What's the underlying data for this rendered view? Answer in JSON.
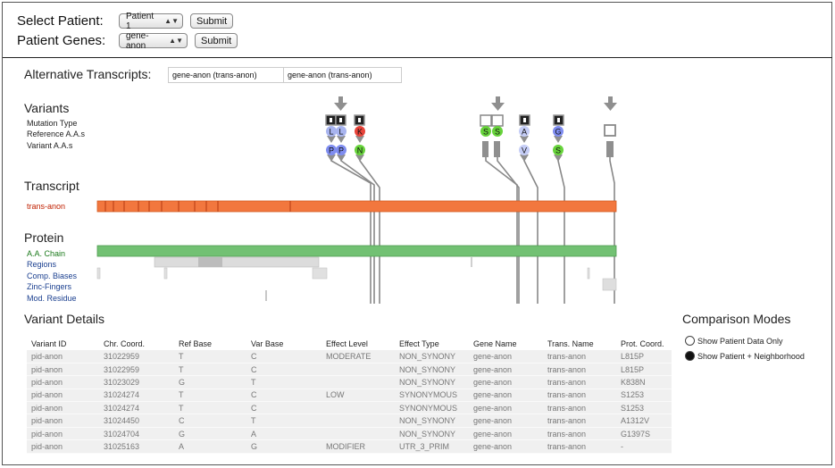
{
  "header": {
    "patient_label": "Select Patient:",
    "patient_value": "Patient 1",
    "patient_submit": "Submit",
    "genes_label": "Patient Genes:",
    "genes_value": "gene-anon",
    "genes_submit": "Submit"
  },
  "alt_transcripts": {
    "label": "Alternative Transcripts:",
    "items": [
      "gene-anon (trans-anon)",
      "gene-anon (trans-anon)"
    ]
  },
  "variants_section": {
    "title": "Variants",
    "row_labels": [
      "Mutation Type",
      "Reference A.A.s",
      "Variant A.A.s"
    ],
    "markers": [
      {
        "ref": "L",
        "var": "P",
        "ref_color": "#a8b4ef",
        "var_color": "#7f8df0",
        "type": "dark"
      },
      {
        "ref": "L",
        "var": "P",
        "ref_color": "#a8b4ef",
        "var_color": "#7f8df0",
        "type": "dark"
      },
      {
        "ref": "K",
        "var": "N",
        "ref_color": "#e8443a",
        "var_color": "#67d33b",
        "type": "dark"
      },
      {
        "ref": "S",
        "var": "",
        "ref_color": "#67d33b",
        "var_color": "",
        "type": "light"
      },
      {
        "ref": "S",
        "var": "",
        "ref_color": "#67d33b",
        "var_color": "",
        "type": "light"
      },
      {
        "ref": "A",
        "var": "V",
        "ref_color": "#c5cdf6",
        "var_color": "#c5cdf6",
        "type": "dark"
      },
      {
        "ref": "G",
        "var": "S",
        "ref_color": "#7f8df0",
        "var_color": "#67d33b",
        "type": "dark"
      },
      {
        "ref": "",
        "var": "",
        "ref_color": "",
        "var_color": "",
        "type": "light"
      }
    ]
  },
  "transcript_section": {
    "title": "Transcript",
    "track_label": "trans-anon",
    "bar_color": "#f2773e"
  },
  "protein_section": {
    "title": "Protein",
    "track_labels": [
      "A.A. Chain",
      "Regions",
      "Comp. Biases",
      "Zinc-Fingers",
      "Mod. Residue"
    ],
    "chain_color": "#72c173"
  },
  "variant_details": {
    "title": "Variant Details",
    "columns": [
      "Variant ID",
      "Chr. Coord.",
      "Ref Base",
      "Var Base",
      "Effect Level",
      "Effect Type",
      "Gene Name",
      "Trans. Name",
      "Prot. Coord."
    ],
    "rows": [
      [
        "pid-anon",
        "31022959",
        "T",
        "C",
        "MODERATE",
        "NON_SYNONY",
        "gene-anon",
        "trans-anon",
        "L815P"
      ],
      [
        "pid-anon",
        "31022959",
        "T",
        "C",
        "",
        "NON_SYNONY",
        "gene-anon",
        "trans-anon",
        "L815P"
      ],
      [
        "pid-anon",
        "31023029",
        "G",
        "T",
        "",
        "NON_SYNONY",
        "gene-anon",
        "trans-anon",
        "K838N"
      ],
      [
        "pid-anon",
        "31024274",
        "T",
        "C",
        "LOW",
        "SYNONYMOUS",
        "gene-anon",
        "trans-anon",
        "S1253"
      ],
      [
        "pid-anon",
        "31024274",
        "T",
        "C",
        "",
        "SYNONYMOUS",
        "gene-anon",
        "trans-anon",
        "S1253"
      ],
      [
        "pid-anon",
        "31024450",
        "C",
        "T",
        "",
        "NON_SYNONY",
        "gene-anon",
        "trans-anon",
        "A1312V"
      ],
      [
        "pid-anon",
        "31024704",
        "G",
        "A",
        "",
        "NON_SYNONY",
        "gene-anon",
        "trans-anon",
        "G1397S"
      ],
      [
        "pid-anon",
        "31025163",
        "A",
        "G",
        "MODIFIER",
        "UTR_3_PRIM",
        "gene-anon",
        "trans-anon",
        "-"
      ]
    ]
  },
  "comparison": {
    "title": "Comparison Modes",
    "options": [
      {
        "label": "Show Patient Data Only",
        "selected": false
      },
      {
        "label": "Show Patient + Neighborhood",
        "selected": true
      }
    ]
  }
}
